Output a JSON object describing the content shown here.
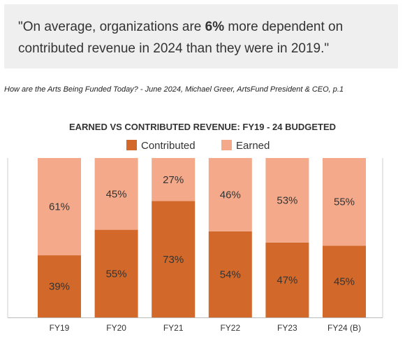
{
  "quote": {
    "before": "\"On average, organizations are ",
    "bold": "6%",
    "after": " more dependent on contributed revenue in 2024 than they were in 2019.\""
  },
  "citation": "How are the Arts Being Funded Today? - June 2024, Michael Greer, ArtsFund President & CEO, p.1",
  "colors": {
    "contributed": "#d2692a",
    "earned": "#f4aa8a",
    "label": "#333333",
    "axis": "#bbbbbb"
  },
  "chart_data": {
    "type": "bar",
    "stacked": true,
    "percent": true,
    "title": "EARNED VS CONTRIBUTED REVENUE: FY19 - 24 BUDGETED",
    "categories": [
      "FY19",
      "FY20",
      "FY21",
      "FY22",
      "FY23",
      "FY24 (B)"
    ],
    "series": [
      {
        "name": "Contributed",
        "values": [
          39,
          55,
          73,
          54,
          47,
          45
        ],
        "color": "#d2692a"
      },
      {
        "name": "Earned",
        "values": [
          61,
          45,
          27,
          46,
          53,
          55
        ],
        "color": "#f4aa8a"
      }
    ],
    "ylim": [
      0,
      100
    ],
    "legend": "top",
    "grid": false,
    "value_suffix": "%"
  }
}
